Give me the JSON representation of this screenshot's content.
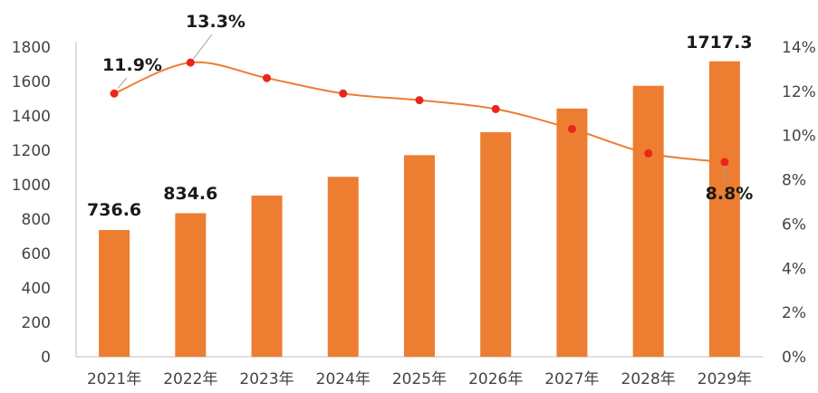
{
  "chart_data": {
    "type": "bar",
    "title": "",
    "xlabel": "",
    "ylabel": "",
    "categories": [
      "2021年",
      "2022年",
      "2023年",
      "2024年",
      "2025年",
      "2026年",
      "2027年",
      "2028年",
      "2029年"
    ],
    "series": [
      {
        "type": "bar",
        "axis": "left",
        "color": "#ED7D31",
        "values": [
          736.6,
          834.6,
          937,
          1046,
          1172,
          1305,
          1443,
          1575,
          1717.3
        ]
      },
      {
        "type": "line",
        "axis": "right",
        "color": "#ED7D31",
        "marker_color": "#E8261C",
        "unit": "%",
        "values": [
          11.9,
          13.3,
          12.6,
          11.9,
          11.6,
          11.2,
          10.3,
          9.2,
          8.8
        ]
      }
    ],
    "ylim": [
      0,
      1800
    ],
    "y_ticks": [
      "0",
      "200",
      "400",
      "600",
      "800",
      "1000",
      "1200",
      "1400",
      "1600",
      "1800"
    ],
    "y2lim": [
      0,
      14
    ],
    "y2_ticks": [
      "0%",
      "2%",
      "4%",
      "6%",
      "8%",
      "10%",
      "12%",
      "14%"
    ],
    "grid": false,
    "legend": "none",
    "bar_labels": [
      {
        "index": 0,
        "text": "736.6"
      },
      {
        "index": 1,
        "text": "834.6"
      },
      {
        "index": 8,
        "text": "1717.3"
      }
    ],
    "rate_labels": [
      {
        "index": 0,
        "text": "11.9%"
      },
      {
        "index": 1,
        "text": "13.3%"
      },
      {
        "index": 8,
        "text": "8.8%"
      }
    ]
  }
}
